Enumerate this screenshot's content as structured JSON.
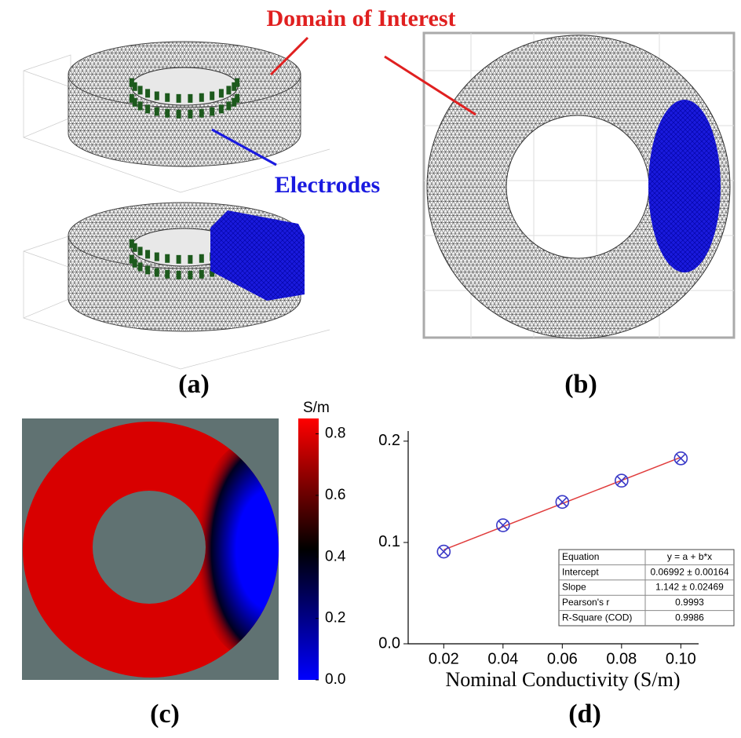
{
  "annotations": {
    "domain": "Domain of Interest",
    "electrodes": "Electrodes"
  },
  "panel_labels": [
    "(a)",
    "(b)",
    "(c)",
    "(d)"
  ],
  "colorbar": {
    "unit": "S/m",
    "lim": [
      0,
      0.85
    ],
    "ticks": [
      {
        "value": 0,
        "label": "0.0"
      },
      0.2,
      0.4,
      0.6,
      0.8
    ],
    "colormap": [
      "#0000ff",
      "#000000",
      "#ff0000"
    ]
  },
  "chart_data": {
    "type": "scatter",
    "xlabel": "Nominal Conductivity (S/m)",
    "x": [
      0.02,
      0.04,
      0.06,
      0.08,
      0.1
    ],
    "values": [
      0.091,
      0.117,
      0.14,
      0.161,
      0.183
    ],
    "color": "#3a3ac8",
    "fit": {
      "intercept": 0.06992,
      "slope": 1.142,
      "color": "#e03c3c"
    },
    "xlim": [
      0.008,
      0.106
    ],
    "ylim": [
      0,
      0.21
    ],
    "xticks": [
      0.02,
      0.04,
      0.06,
      0.08,
      {
        "value": 0.1,
        "label": "0.10"
      }
    ],
    "yticks": [
      {
        "value": 0,
        "label": "0.0"
      },
      0.1,
      0.2
    ],
    "table": [
      [
        "Equation",
        "y = a + b*x"
      ],
      [
        "Intercept",
        "0.06992 ± 0.00164"
      ],
      [
        "Slope",
        "1.142 ± 0.02469"
      ],
      [
        "Pearson's r",
        "0.9993"
      ],
      [
        "R-Square (COD)",
        "0.9986"
      ]
    ]
  }
}
